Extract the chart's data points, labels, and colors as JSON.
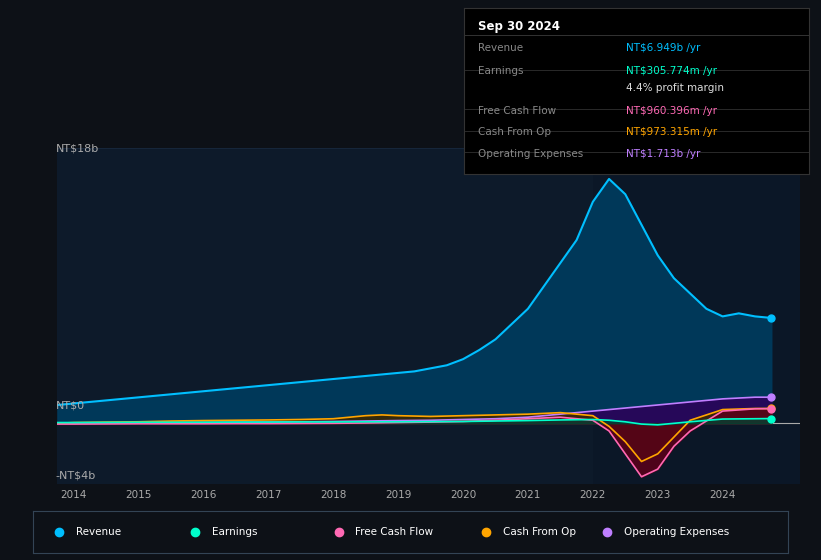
{
  "background_color": "#0d1117",
  "chart_bg_color": "#0d1a2a",
  "ylabel_top": "NT$18b",
  "ylabel_zero": "NT$0",
  "ylabel_bottom": "-NT$4b",
  "y_max": 18,
  "y_min": -4,
  "info_box": {
    "date": "Sep 30 2024",
    "rows": [
      {
        "label": "Revenue",
        "value": "NT$6.949b /yr",
        "value_color": "#00bfff"
      },
      {
        "label": "Earnings",
        "value": "NT$305.774m /yr",
        "value_color": "#00ffcc"
      },
      {
        "label": "",
        "value": "4.4% profit margin",
        "value_color": "#dddddd"
      },
      {
        "label": "Free Cash Flow",
        "value": "NT$960.396m /yr",
        "value_color": "#ff69b4"
      },
      {
        "label": "Cash From Op",
        "value": "NT$973.315m /yr",
        "value_color": "#ffa500"
      },
      {
        "label": "Operating Expenses",
        "value": "NT$1.713b /yr",
        "value_color": "#bf7fff"
      }
    ]
  },
  "series": {
    "revenue": {
      "color": "#00bfff",
      "fill_color": "#003a5c",
      "label": "Revenue",
      "data_x": [
        2013.75,
        2014.0,
        2014.25,
        2014.5,
        2014.75,
        2015.0,
        2015.25,
        2015.5,
        2015.75,
        2016.0,
        2016.25,
        2016.5,
        2016.75,
        2017.0,
        2017.25,
        2017.5,
        2017.75,
        2018.0,
        2018.25,
        2018.5,
        2018.75,
        2019.0,
        2019.25,
        2019.5,
        2019.75,
        2020.0,
        2020.25,
        2020.5,
        2020.75,
        2021.0,
        2021.25,
        2021.5,
        2021.75,
        2022.0,
        2022.25,
        2022.5,
        2022.75,
        2023.0,
        2023.25,
        2023.5,
        2023.75,
        2024.0,
        2024.25,
        2024.5,
        2024.75
      ],
      "data_y": [
        1.2,
        1.3,
        1.4,
        1.5,
        1.6,
        1.7,
        1.8,
        1.9,
        2.0,
        2.1,
        2.2,
        2.3,
        2.4,
        2.5,
        2.6,
        2.7,
        2.8,
        2.9,
        3.0,
        3.1,
        3.2,
        3.3,
        3.4,
        3.6,
        3.8,
        4.2,
        4.8,
        5.5,
        6.5,
        7.5,
        9.0,
        10.5,
        12.0,
        14.5,
        16.0,
        15.0,
        13.0,
        11.0,
        9.5,
        8.5,
        7.5,
        7.0,
        7.2,
        7.0,
        6.9
      ]
    },
    "earnings": {
      "color": "#00ffcc",
      "fill_color": "#004433",
      "label": "Earnings",
      "data_x": [
        2013.75,
        2014.0,
        2014.5,
        2015.0,
        2015.5,
        2016.0,
        2016.5,
        2017.0,
        2017.5,
        2018.0,
        2018.5,
        2019.0,
        2019.5,
        2020.0,
        2020.5,
        2021.0,
        2021.5,
        2022.0,
        2022.25,
        2022.5,
        2022.75,
        2023.0,
        2023.5,
        2024.0,
        2024.5,
        2024.75
      ],
      "data_y": [
        0.05,
        0.05,
        0.06,
        0.07,
        0.07,
        0.07,
        0.08,
        0.08,
        0.09,
        0.09,
        0.1,
        0.1,
        0.11,
        0.12,
        0.15,
        0.18,
        0.22,
        0.25,
        0.2,
        0.1,
        -0.05,
        -0.1,
        0.1,
        0.28,
        0.3,
        0.31
      ]
    },
    "free_cash_flow": {
      "color": "#ff69b4",
      "fill_color": "#5a001a",
      "label": "Free Cash Flow",
      "data_x": [
        2013.75,
        2014.0,
        2014.5,
        2015.0,
        2015.5,
        2016.0,
        2016.5,
        2017.0,
        2017.5,
        2018.0,
        2018.5,
        2019.0,
        2019.5,
        2020.0,
        2020.5,
        2021.0,
        2021.5,
        2022.0,
        2022.25,
        2022.5,
        2022.75,
        2023.0,
        2023.25,
        2023.5,
        2024.0,
        2024.5,
        2024.75
      ],
      "data_y": [
        -0.05,
        -0.05,
        -0.04,
        -0.03,
        -0.03,
        -0.03,
        -0.02,
        -0.02,
        -0.01,
        0.0,
        0.02,
        0.05,
        0.08,
        0.12,
        0.2,
        0.3,
        0.4,
        0.2,
        -0.5,
        -2.0,
        -3.5,
        -3.0,
        -1.5,
        -0.5,
        0.8,
        0.95,
        0.96
      ]
    },
    "cash_from_op": {
      "color": "#ffa500",
      "fill_color": "#3d2800",
      "label": "Cash From Op",
      "data_x": [
        2013.75,
        2014.0,
        2014.5,
        2015.0,
        2015.5,
        2016.0,
        2016.5,
        2017.0,
        2017.5,
        2018.0,
        2018.25,
        2018.5,
        2018.75,
        2019.0,
        2019.5,
        2020.0,
        2020.5,
        2021.0,
        2021.5,
        2022.0,
        2022.25,
        2022.5,
        2022.75,
        2023.0,
        2023.5,
        2024.0,
        2024.5,
        2024.75
      ],
      "data_y": [
        0.0,
        0.05,
        0.08,
        0.1,
        0.15,
        0.18,
        0.2,
        0.22,
        0.25,
        0.3,
        0.4,
        0.5,
        0.55,
        0.5,
        0.45,
        0.5,
        0.55,
        0.6,
        0.7,
        0.5,
        -0.2,
        -1.2,
        -2.5,
        -2.0,
        0.2,
        0.9,
        0.97,
        0.97
      ]
    },
    "operating_expenses": {
      "color": "#bf7fff",
      "fill_color": "#2d0059",
      "label": "Operating Expenses",
      "data_x": [
        2013.75,
        2014.0,
        2014.5,
        2015.0,
        2015.5,
        2016.0,
        2016.5,
        2017.0,
        2017.5,
        2018.0,
        2018.5,
        2019.0,
        2019.5,
        2020.0,
        2020.5,
        2021.0,
        2021.5,
        2022.0,
        2022.5,
        2023.0,
        2023.5,
        2024.0,
        2024.5,
        2024.75
      ],
      "data_y": [
        0.02,
        0.02,
        0.03,
        0.04,
        0.05,
        0.06,
        0.07,
        0.08,
        0.1,
        0.12,
        0.15,
        0.18,
        0.2,
        0.25,
        0.3,
        0.4,
        0.6,
        0.8,
        1.0,
        1.2,
        1.4,
        1.6,
        1.71,
        1.71
      ]
    }
  },
  "legend_items": [
    {
      "label": "Revenue",
      "color": "#00bfff"
    },
    {
      "label": "Earnings",
      "color": "#00ffcc"
    },
    {
      "label": "Free Cash Flow",
      "color": "#ff69b4"
    },
    {
      "label": "Cash From Op",
      "color": "#ffa500"
    },
    {
      "label": "Operating Expenses",
      "color": "#bf7fff"
    }
  ],
  "divider_line_color": "#1e3048",
  "zero_line_color": "#aaaaaa",
  "tick_color": "#aaaaaa",
  "label_color": "#aaaaaa",
  "shaded_right_color": "#0a1525",
  "x_min": 2013.75,
  "x_max": 2025.2
}
